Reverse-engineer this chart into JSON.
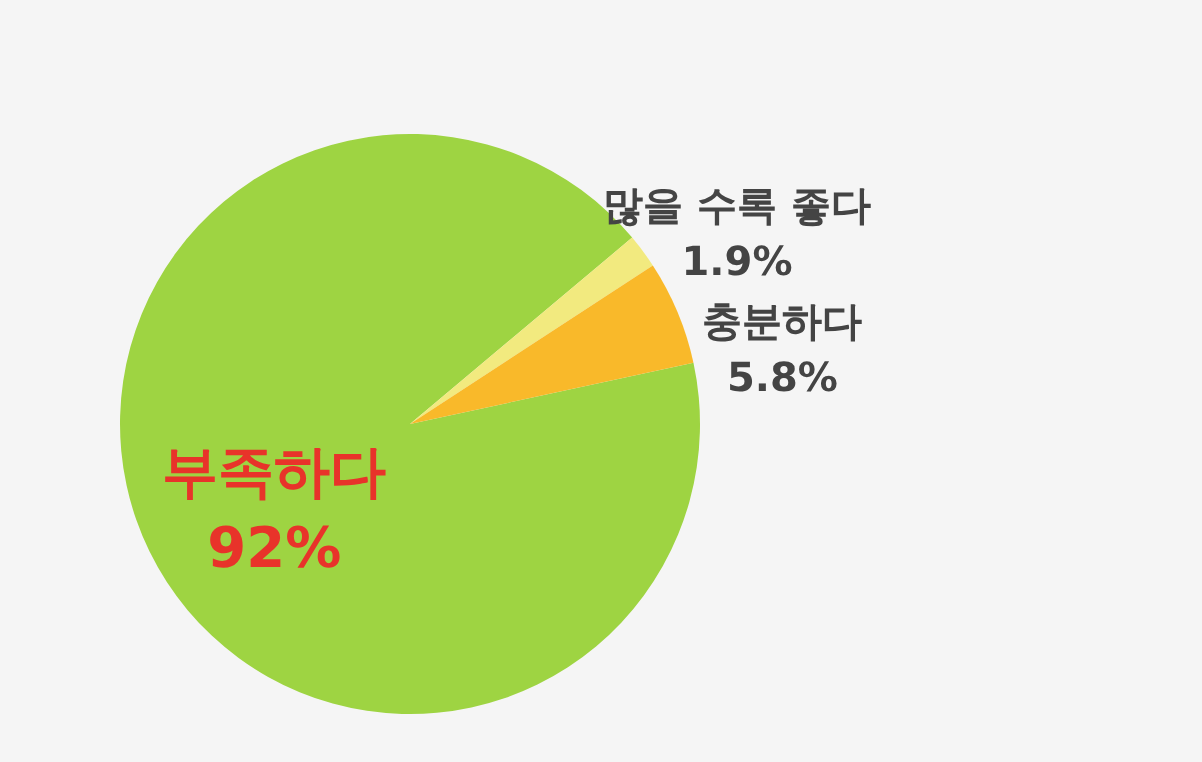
{
  "chart_data": {
    "type": "pie",
    "categories": [
      "많을 수록 좋다",
      "충분하다",
      "부족하다"
    ],
    "values": [
      1.9,
      5.8,
      92
    ],
    "colors": [
      "#f2ea7f",
      "#f9b92a",
      "#9ed442"
    ],
    "value_labels": [
      "1.9%",
      "5.8%",
      "92%"
    ]
  }
}
